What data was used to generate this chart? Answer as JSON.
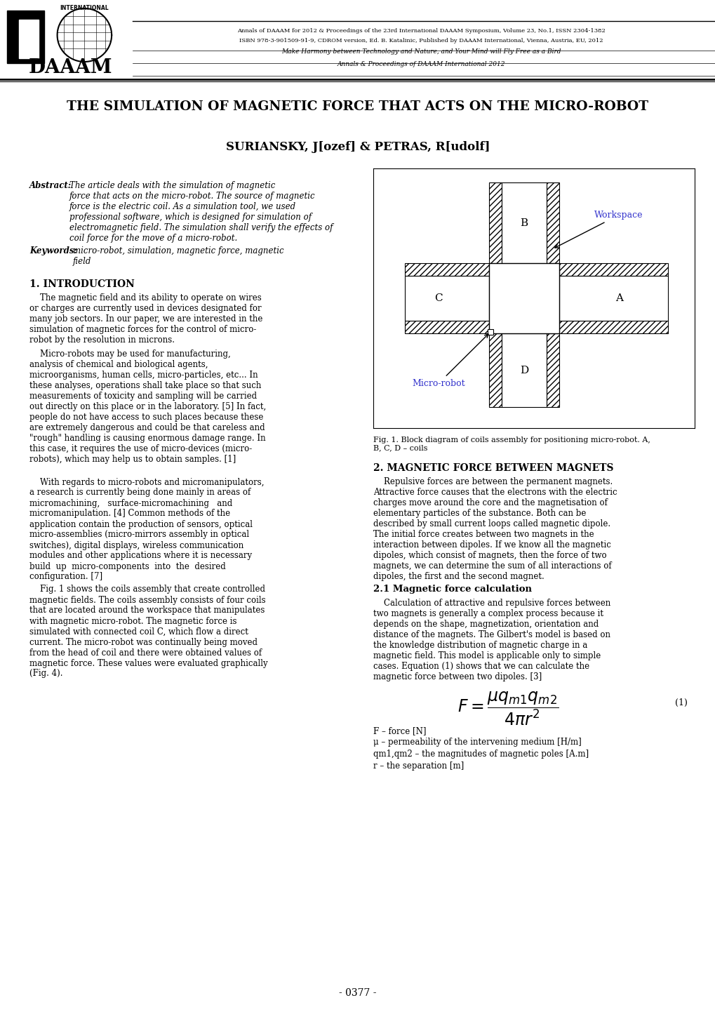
{
  "header_line1": "Annals of DAAAM for 2012 & Proceedings of the 23rd International DAAAM Symposium, Volume 23, No.1, ISSN 2304-1382",
  "header_line2": "ISBN 978-3-901509-91-9, CDROM version, Ed. B. Katalinic, Published by DAAAM International, Vienna, Austria, EU, 2012",
  "header_line3": "Make Harmony between Technology and Nature, and Your Mind will Fly Free as a Bird",
  "header_line4": "Annals & Proceedings of DAAAM International 2012",
  "title": "THE SIMULATION OF MAGNETIC FORCE THAT ACTS ON THE MICRO-ROBOT",
  "authors": "SURIANSKY, J[ozef] & PETRAS, R[udolf]",
  "abstract_label": "Abstract:",
  "abstract_body": "The article deals with the simulation of magnetic\nforce that acts on the micro-robot. The source of magnetic\nforce is the electric coil. As a simulation tool, we used\nprofessional software, which is designed for simulation of\nelectromagnetic field. The simulation shall verify the effects of\ncoil force for the move of a micro-robot.",
  "keywords_label": "Keywords:",
  "keywords_body": "micro-robot, simulation, magnetic force, magnetic\nfield",
  "s1_title": "1. INTRODUCTION",
  "s1_p1": "    The magnetic field and its ability to operate on wires\nor charges are currently used in devices designated for\nmany job sectors. In our paper, we are interested in the\nsimulation of magnetic forces for the control of micro-\nrobot by the resolution in microns.",
  "s1_p2": "    Micro-robots may be used for manufacturing,\nanalysis of chemical and biological agents,\nmicroorganisms, human cells, micro-particles, etc... In\nthese analyses, operations shall take place so that such\nmeasurements of toxicity and sampling will be carried\nout directly on this place or in the laboratory. [5] In fact,\npeople do not have access to such places because these\nare extremely dangerous and could be that careless and\n\"rough\" handling is causing enormous damage range. In\nthis case, it requires the use of micro-devices (micro-\nrobots), which may help us to obtain samples. [1]",
  "s1_p3": "    With regards to micro-robots and micromanipulators,\na research is currently being done mainly in areas of\nmicromachining,   surface-micromachining   and\nmicromanipulation. [4] Common methods of the\napplication contain the production of sensors, optical\nmicro-assemblies (micro-mirrors assembly in optical\nswitches), digital displays, wireless communication\nmodules and other applications where it is necessary\nbuild  up  micro-components  into  the  desired\nconfiguration. [7]",
  "s1_p4": "    Fig. 1 shows the coils assembly that create controlled\nmagnetic fields. The coils assembly consists of four coils\nthat are located around the workspace that manipulates\nwith magnetic micro-robot. The magnetic force is\nsimulated with connected coil C, which flow a direct\ncurrent. The micro-robot was continually being moved\nfrom the head of coil and there were obtained values of\nmagnetic force. These values were evaluated graphically\n(Fig. 4).",
  "fig1_caption": "Fig. 1. Block diagram of coils assembly for positioning micro-robot. A,\nB, C, D – coils",
  "s2_title": "2. MAGNETIC FORCE BETWEEN MAGNETS",
  "s2_p1": "    Repulsive forces are between the permanent magnets.\nAttractive force causes that the electrons with the electric\ncharges move around the core and the magnetisation of\nelementary particles of the substance. Both can be\ndescribed by small current loops called magnetic dipole.\nThe initial force creates between two magnets in the\ninteraction between dipoles. If we know all the magnetic\ndipoles, which consist of magnets, then the force of two\nmagnets, we can determine the sum of all interactions of\ndipoles, the first and the second magnet.",
  "s21_title": "2.1 Magnetic force calculation",
  "s21_p1": "    Calculation of attractive and repulsive forces between\ntwo magnets is generally a complex process because it\ndepends on the shape, magnetization, orientation and\ndistance of the magnets. The Gilbert's model is based on\nthe knowledge distribution of magnetic charge in a\nmagnetic field. This model is applicable only to simple\ncases. Equation (1) shows that we can calculate the\nmagnetic force between two dipoles. [3]",
  "formula_var1": "F – force [N]",
  "formula_var2": "μ – permeability of the intervening medium [H/m]",
  "formula_var3": "qm1,qm2 – the magnitudes of magnetic poles [A.m]",
  "formula_var4": "r – the separation [m]",
  "page_number": "- 0377 -"
}
